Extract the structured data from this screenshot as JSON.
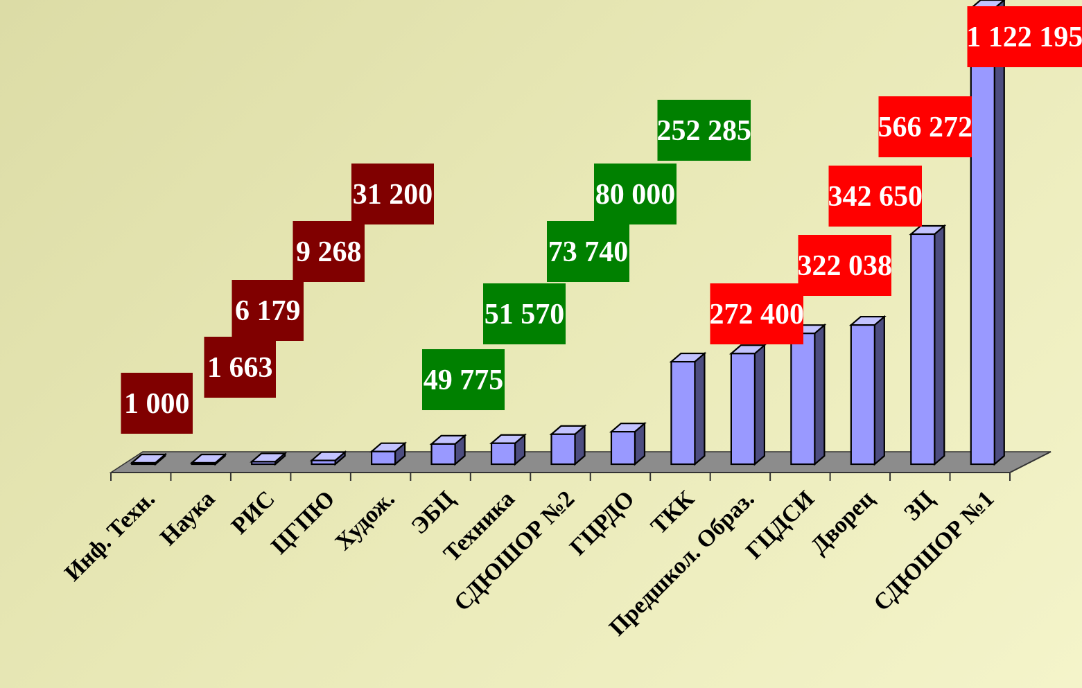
{
  "chart_data": {
    "type": "bar",
    "title": "",
    "xlabel": "",
    "ylabel": "",
    "ylim": [
      0,
      1122195
    ],
    "grid": false,
    "legend": "none",
    "categories": [
      "Инф. Техн.",
      "Наука",
      "РИС",
      "ЦГПЮ",
      "Худож.",
      "ЭБЦ",
      "Техника",
      "СДЮШОР №2",
      "ГЦРДО",
      "ТКК",
      "Предшкол. Образ.",
      "ГЦДСИ",
      "Дворец",
      "ЗЦ",
      "СДЮШОР №1"
    ],
    "values": [
      1000,
      1663,
      6179,
      9268,
      31200,
      49775,
      51570,
      73740,
      80000,
      252285,
      272400,
      322038,
      342650,
      566272,
      1122195
    ],
    "data_labels": [
      "1 000",
      "1 663",
      "6 179",
      "9 268",
      "31 200",
      "49 775",
      "51 570",
      "73 740",
      "80 000",
      "252 285",
      "272 400",
      "322 038",
      "342 650",
      "566 272",
      "1 122 195"
    ],
    "label_groups": [
      "dark",
      "dark",
      "dark",
      "dark",
      "dark",
      "green",
      "green",
      "green",
      "green",
      "green",
      "red",
      "red",
      "red",
      "red",
      "red"
    ],
    "colors": {
      "bar_front": "#9999ff",
      "bar_side": "#4d4d80",
      "bar_top": "#c3c3ff",
      "floor": "#8c8c8c",
      "label_dark": "#800000",
      "label_green": "#008000",
      "label_red": "#ff0000",
      "label_text": "#ffffff",
      "axis_text": "#000000"
    }
  }
}
